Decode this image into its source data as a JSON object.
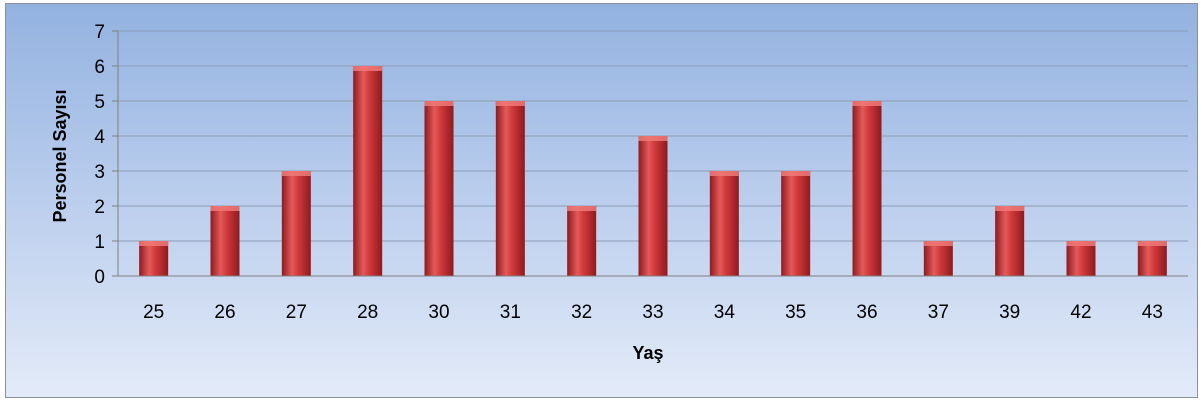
{
  "chart_data": {
    "type": "bar",
    "title": "",
    "xlabel": "Yaş",
    "ylabel": "Personel Sayısı",
    "categories": [
      "25",
      "26",
      "27",
      "28",
      "30",
      "31",
      "32",
      "33",
      "34",
      "35",
      "36",
      "37",
      "39",
      "42",
      "43"
    ],
    "values": [
      1,
      2,
      3,
      6,
      5,
      5,
      2,
      4,
      3,
      3,
      5,
      1,
      2,
      1,
      1
    ],
    "ylim": [
      0,
      7
    ],
    "yticks": [
      "0",
      "1",
      "2",
      "3",
      "4",
      "5",
      "6",
      "7"
    ],
    "grid": true,
    "legend": "none",
    "colors": {
      "bar": "#c0272d",
      "bar_highlight": "#f07a78",
      "bar_dark": "#8e1a1e",
      "gridline": "#8c9cb4",
      "axis": "#7f7f7f"
    }
  }
}
